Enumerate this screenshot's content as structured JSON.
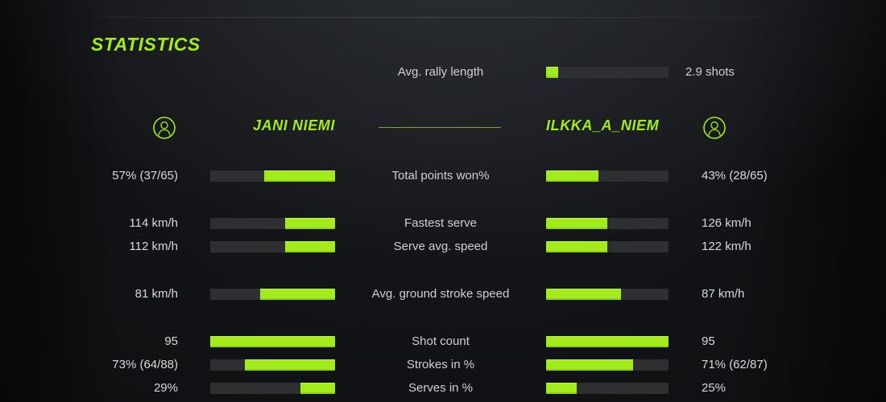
{
  "title": "STATISTICS",
  "colors": {
    "accent": "#a2ec1b",
    "bar_bg": "#2e2f31",
    "text": "#d8d9da",
    "divider": "#8cc32e"
  },
  "rally": {
    "label": "Avg. rally length",
    "value": "2.9 shots",
    "fill_pct": 10
  },
  "players": {
    "left": {
      "name": "JANI NIEMI",
      "icon": "person-icon"
    },
    "right": {
      "name": "ILKKA_A_NIEM",
      "icon": "person-icon"
    }
  },
  "rows": [
    {
      "label": "Total points won%",
      "left_value": "57% (37/65)",
      "right_value": "43% (28/65)",
      "left_fill_pct": 57,
      "right_fill_pct": 43
    },
    {
      "label": "Fastest serve",
      "left_value": "114 km/h",
      "right_value": "126 km/h",
      "left_fill_pct": 40,
      "right_fill_pct": 50
    },
    {
      "label": "Serve avg. speed",
      "left_value": "112 km/h",
      "right_value": "122 km/h",
      "left_fill_pct": 40,
      "right_fill_pct": 50
    },
    {
      "label": "Avg. ground stroke speed",
      "left_value": "81 km/h",
      "right_value": "87 km/h",
      "left_fill_pct": 60,
      "right_fill_pct": 61
    },
    {
      "label": "Shot count",
      "left_value": "95",
      "right_value": "95",
      "left_fill_pct": 100,
      "right_fill_pct": 100
    },
    {
      "label": "Strokes in %",
      "left_value": "73% (64/88)",
      "right_value": "71% (62/87)",
      "left_fill_pct": 72,
      "right_fill_pct": 71
    },
    {
      "label": "Serves in %",
      "left_value": "29%",
      "right_value": "25%",
      "left_fill_pct": 28,
      "right_fill_pct": 25
    }
  ]
}
